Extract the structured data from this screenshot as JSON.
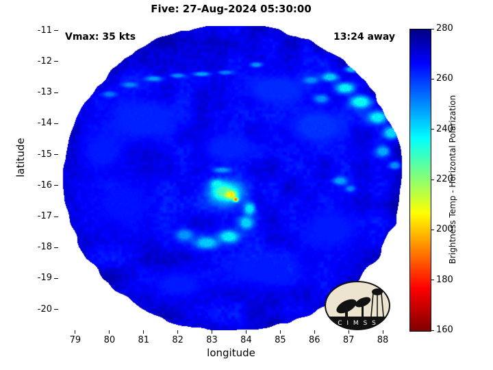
{
  "title": "Five: 27-Aug-2024 05:30:00",
  "annotations": {
    "vmax": "Vmax: 35 kts",
    "time_away": "13:24 away"
  },
  "axes": {
    "xlabel": "longitude",
    "ylabel": "latitude",
    "x_ticks": [
      79,
      80,
      81,
      82,
      83,
      84,
      85,
      86,
      87,
      88
    ],
    "y_ticks": [
      -11,
      -12,
      -13,
      -14,
      -15,
      -16,
      -17,
      -18,
      -19,
      -20
    ],
    "lon_range": [
      78.5,
      88.62
    ],
    "lat_range": [
      -10.85,
      -20.67
    ]
  },
  "colorbar": {
    "label": "Brightness Temp - Horizontal Polarization",
    "ticks": [
      280,
      260,
      240,
      220,
      200,
      180,
      160
    ],
    "min": 160,
    "max": 280
  },
  "cimss_logo": {
    "text": "C I M S S"
  },
  "chart_data": {
    "type": "heatmap",
    "title": "Five: 27-Aug-2024 05:30:00",
    "xlabel": "longitude",
    "ylabel": "latitude",
    "x_range": [
      78.5,
      88.62
    ],
    "y_range": [
      -20.67,
      -10.85
    ],
    "value_label": "Brightness Temp - Horizontal Polarization",
    "value_range": [
      160,
      280
    ],
    "colormap": [
      [
        0,
        0,
        0,
        131
      ],
      [
        0.11,
        0,
        0,
        255
      ],
      [
        0.36,
        0,
        255,
        255
      ],
      [
        0.61,
        255,
        255,
        0
      ],
      [
        0.86,
        255,
        0,
        0
      ],
      [
        1,
        128,
        0,
        0
      ]
    ],
    "colormap_note": "reversed jet: 280 K = dark blue at top of bar, 160 K = dark red at bottom",
    "swath": {
      "center_lon": 83.6,
      "center_lat": -15.75,
      "radius_deg": 4.95
    },
    "background_temp": 268,
    "noise_amp": 5,
    "features_format": [
      "lon",
      "lat",
      "radius_lon",
      "radius_lat",
      "temp_K"
    ],
    "features": [
      [
        81.0,
        -13.9,
        1.7,
        1.1,
        263
      ],
      [
        84.9,
        -12.9,
        1.5,
        0.8,
        262
      ],
      [
        86.1,
        -14.1,
        1.3,
        0.9,
        261
      ],
      [
        83.5,
        -14.8,
        1.2,
        0.7,
        263
      ],
      [
        80.4,
        -16.6,
        1.3,
        1.2,
        265
      ],
      [
        84.6,
        -18.7,
        1.8,
        0.9,
        264
      ],
      [
        86.5,
        -17.4,
        1.3,
        1.0,
        264
      ],
      [
        82.0,
        -19.2,
        1.1,
        0.6,
        264
      ],
      [
        79.8,
        -14.9,
        0.9,
        0.9,
        264
      ],
      [
        80.0,
        -13.05,
        0.28,
        0.13,
        253
      ],
      [
        80.6,
        -12.75,
        0.3,
        0.12,
        251
      ],
      [
        81.3,
        -12.55,
        0.35,
        0.12,
        249
      ],
      [
        82.0,
        -12.45,
        0.3,
        0.1,
        251
      ],
      [
        82.7,
        -12.4,
        0.35,
        0.1,
        248
      ],
      [
        83.4,
        -12.35,
        0.3,
        0.1,
        252
      ],
      [
        84.3,
        -12.1,
        0.25,
        0.12,
        250
      ],
      [
        85.9,
        -12.6,
        0.3,
        0.15,
        250
      ],
      [
        86.45,
        -12.5,
        0.35,
        0.2,
        243
      ],
      [
        86.9,
        -12.85,
        0.4,
        0.25,
        238
      ],
      [
        87.35,
        -13.3,
        0.45,
        0.3,
        236
      ],
      [
        87.85,
        -13.8,
        0.4,
        0.3,
        239
      ],
      [
        88.25,
        -14.3,
        0.35,
        0.3,
        242
      ],
      [
        87.1,
        -12.25,
        0.3,
        0.15,
        246
      ],
      [
        86.2,
        -13.2,
        0.3,
        0.2,
        250
      ],
      [
        88.0,
        -14.9,
        0.3,
        0.25,
        247
      ],
      [
        88.35,
        -15.35,
        0.25,
        0.2,
        251
      ],
      [
        86.75,
        -15.85,
        0.3,
        0.18,
        248
      ],
      [
        87.05,
        -16.1,
        0.2,
        0.14,
        252
      ],
      [
        83.45,
        -16.25,
        0.8,
        0.6,
        246
      ],
      [
        83.35,
        -16.2,
        0.45,
        0.35,
        228
      ],
      [
        83.55,
        -16.3,
        0.22,
        0.18,
        206
      ],
      [
        83.7,
        -16.45,
        0.1,
        0.09,
        192
      ],
      [
        83.15,
        -15.95,
        0.25,
        0.2,
        236
      ],
      [
        83.3,
        -15.5,
        0.35,
        0.12,
        249
      ],
      [
        84.1,
        -16.75,
        0.25,
        0.3,
        240
      ],
      [
        84.0,
        -17.2,
        0.3,
        0.3,
        242
      ],
      [
        83.5,
        -17.65,
        0.45,
        0.3,
        239
      ],
      [
        82.85,
        -17.85,
        0.5,
        0.28,
        243
      ],
      [
        82.2,
        -17.6,
        0.38,
        0.28,
        250
      ]
    ]
  }
}
